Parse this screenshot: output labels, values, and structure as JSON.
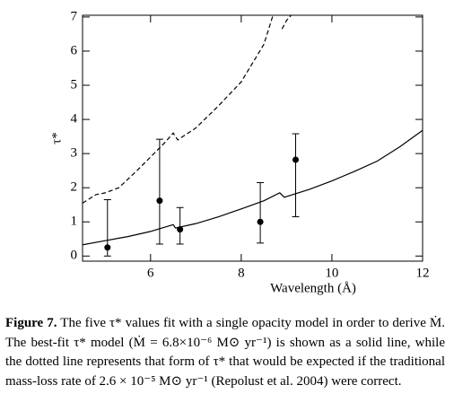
{
  "chart_data": {
    "type": "line",
    "xlabel": "Wavelength (Å)",
    "ylabel": "τ*",
    "xlim": [
      4.5,
      12
    ],
    "ylim": [
      -0.15,
      7.05
    ],
    "xticks": [
      6,
      8,
      10,
      12
    ],
    "yticks": [
      0,
      1,
      2,
      3,
      4,
      5,
      6,
      7
    ],
    "lines": [
      {
        "style": "solid",
        "x": [
          4.5,
          5,
          5.5,
          6,
          6.5,
          6.55,
          7,
          7.5,
          8,
          8.5,
          8.85,
          8.95,
          9.5,
          10,
          10.5,
          11,
          11.5,
          12
        ],
        "y": [
          0.33,
          0.45,
          0.57,
          0.72,
          0.92,
          0.82,
          0.95,
          1.15,
          1.38,
          1.62,
          1.85,
          1.72,
          1.95,
          2.2,
          2.48,
          2.78,
          3.2,
          3.68
        ]
      },
      {
        "style": "dashed",
        "x": [
          4.5,
          4.8,
          5,
          5.3,
          5.7,
          6,
          6.3,
          6.5,
          6.6,
          7,
          7.5,
          8,
          8.5,
          8.7,
          8.8,
          8.9,
          9.0,
          9.1
        ],
        "y": [
          1.55,
          1.8,
          1.85,
          2.0,
          2.5,
          2.9,
          3.3,
          3.6,
          3.4,
          3.75,
          4.4,
          5.1,
          6.2,
          7.05,
          null,
          6.65,
          6.9,
          7.05
        ]
      }
    ],
    "points": {
      "x": [
        5.05,
        6.2,
        6.65,
        8.42,
        9.2
      ],
      "y": [
        0.25,
        1.62,
        0.78,
        1.0,
        2.82
      ],
      "lower": [
        0.0,
        0.35,
        0.35,
        0.38,
        1.15
      ],
      "upper": [
        1.65,
        3.42,
        1.42,
        2.15,
        3.58
      ]
    }
  },
  "caption": {
    "label": "Figure 7.",
    "text": "The five τ* values fit with a single opacity model in order to derive Ṁ. The best-fit τ* model (Ṁ = 6.8×10⁻⁶ M⊙ yr⁻¹) is shown as a solid line, while the dotted line represents that form of τ* that would be expected if the traditional mass-loss rate of 2.6 × 10⁻⁵ M⊙ yr⁻¹ (Repolust et al. 2004) were correct."
  }
}
